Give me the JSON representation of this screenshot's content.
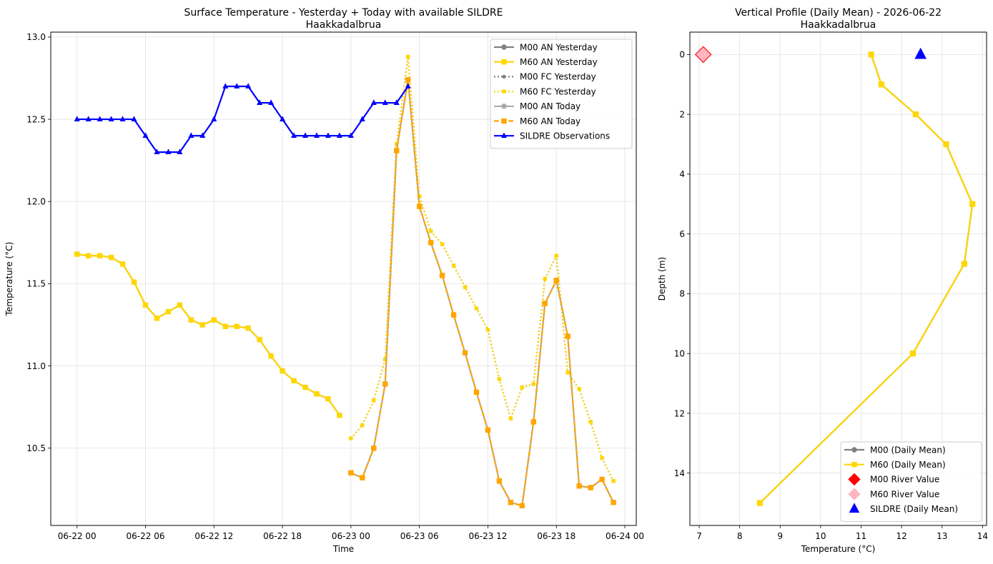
{
  "chart_data": [
    {
      "type": "line",
      "title": "Surface Temperature - Yesterday + Today with available SILDRE",
      "subtitle": "Haakkadalbrua",
      "xlabel": "Time",
      "ylabel": "Temperature (°C)",
      "x_unit": "hours since 06-22 00",
      "xlim": [
        -2.3,
        49
      ],
      "ylim": [
        10.03,
        13.03
      ],
      "x_ticks": [
        0,
        6,
        12,
        18,
        24,
        30,
        36,
        42,
        48
      ],
      "x_tick_labels": [
        "06-22 00",
        "06-22 06",
        "06-22 12",
        "06-22 18",
        "06-23 00",
        "06-23 06",
        "06-23 12",
        "06-23 18",
        "06-24 00"
      ],
      "y_ticks": [
        10.5,
        11.0,
        11.5,
        12.0,
        12.5,
        13.0
      ],
      "y_tick_labels": [
        "10.5",
        "11.0",
        "11.5",
        "12.0",
        "12.5",
        "13.0"
      ],
      "grid": true,
      "legend_position": "top-right",
      "series": [
        {
          "name": "M00 AN Yesterday",
          "color": "#808080",
          "dash": "solid",
          "marker": "circle",
          "x": [
            0,
            1,
            2,
            3,
            4,
            5,
            6,
            7,
            8,
            9,
            10,
            11,
            12,
            13,
            14,
            15,
            16,
            17,
            18,
            19,
            20,
            21,
            22,
            23
          ],
          "y": [
            11.68,
            11.67,
            11.67,
            11.66,
            11.62,
            11.51,
            11.37,
            11.29,
            11.33,
            11.37,
            11.28,
            11.25,
            11.28,
            11.24,
            11.24,
            11.23,
            11.16,
            11.06,
            10.97,
            10.91,
            10.87,
            10.83,
            10.8,
            10.7
          ]
        },
        {
          "name": "M60 AN Yesterday",
          "color": "#FFD700",
          "dash": "solid",
          "marker": "square",
          "x": [
            0,
            1,
            2,
            3,
            4,
            5,
            6,
            7,
            8,
            9,
            10,
            11,
            12,
            13,
            14,
            15,
            16,
            17,
            18,
            19,
            20,
            21,
            22,
            23
          ],
          "y": [
            11.68,
            11.67,
            11.67,
            11.66,
            11.62,
            11.51,
            11.37,
            11.29,
            11.33,
            11.37,
            11.28,
            11.25,
            11.28,
            11.24,
            11.24,
            11.23,
            11.16,
            11.06,
            10.97,
            10.91,
            10.87,
            10.83,
            10.8,
            10.7
          ]
        },
        {
          "name": "M00 FC Yesterday",
          "color": "#808080",
          "dash": "dotted",
          "marker": "circle",
          "x": [
            24,
            25,
            26,
            27,
            28,
            29,
            30,
            31,
            32,
            33,
            34,
            35,
            36,
            37,
            38,
            39,
            40,
            41,
            42,
            43,
            44,
            45,
            46,
            47
          ],
          "y": [
            10.56,
            10.64,
            10.79,
            11.04,
            12.35,
            12.88,
            12.03,
            11.82,
            11.74,
            11.61,
            11.48,
            11.35,
            11.22,
            10.92,
            10.68,
            10.87,
            10.89,
            11.53,
            11.67,
            10.96,
            10.86,
            10.66,
            10.44,
            10.3
          ]
        },
        {
          "name": "M60 FC Yesterday",
          "color": "#FFD700",
          "dash": "dotted",
          "marker": "square",
          "x": [
            24,
            25,
            26,
            27,
            28,
            29,
            30,
            31,
            32,
            33,
            34,
            35,
            36,
            37,
            38,
            39,
            40,
            41,
            42,
            43,
            44,
            45,
            46,
            47
          ],
          "y": [
            10.56,
            10.64,
            10.79,
            11.04,
            12.35,
            12.88,
            12.03,
            11.82,
            11.74,
            11.61,
            11.48,
            11.35,
            11.22,
            10.92,
            10.68,
            10.87,
            10.89,
            11.53,
            11.67,
            10.96,
            10.86,
            10.66,
            10.44,
            10.3
          ]
        },
        {
          "name": "M00 AN Today",
          "color": "#A9A9A9",
          "dash": "solid",
          "marker": "circle",
          "x": [
            24,
            25,
            26,
            27,
            28,
            29,
            30,
            31,
            32,
            33,
            34,
            35,
            36,
            37,
            38,
            39,
            40,
            41,
            42,
            43,
            44,
            45,
            46,
            47
          ],
          "y": [
            10.35,
            10.32,
            10.5,
            10.89,
            12.31,
            12.74,
            11.97,
            11.75,
            11.55,
            11.31,
            11.08,
            10.84,
            10.61,
            10.3,
            10.17,
            10.15,
            10.66,
            11.38,
            11.52,
            11.18,
            10.27,
            10.26,
            10.31,
            10.17
          ]
        },
        {
          "name": "M60 AN Today",
          "color": "#FFA500",
          "dash": "dashed",
          "marker": "square",
          "x": [
            24,
            25,
            26,
            27,
            28,
            29,
            30,
            31,
            32,
            33,
            34,
            35,
            36,
            37,
            38,
            39,
            40,
            41,
            42,
            43,
            44,
            45,
            46,
            47
          ],
          "y": [
            10.35,
            10.32,
            10.5,
            10.89,
            12.31,
            12.74,
            11.97,
            11.75,
            11.55,
            11.31,
            11.08,
            10.84,
            10.61,
            10.3,
            10.17,
            10.15,
            10.66,
            11.38,
            11.52,
            11.18,
            10.27,
            10.26,
            10.31,
            10.17
          ]
        },
        {
          "name": "SILDRE Observations",
          "color": "#0000FF",
          "dash": "solid",
          "marker": "triangle",
          "x": [
            0,
            1,
            2,
            3,
            4,
            5,
            6,
            7,
            8,
            9,
            10,
            11,
            12,
            13,
            14,
            15,
            16,
            17,
            18,
            19,
            20,
            21,
            22,
            23,
            24,
            25,
            26,
            27,
            28,
            29
          ],
          "y": [
            12.5,
            12.5,
            12.5,
            12.5,
            12.5,
            12.5,
            12.4,
            12.3,
            12.3,
            12.3,
            12.4,
            12.4,
            12.5,
            12.7,
            12.7,
            12.7,
            12.6,
            12.6,
            12.5,
            12.4,
            12.4,
            12.4,
            12.4,
            12.4,
            12.4,
            12.5,
            12.6,
            12.6,
            12.6,
            12.7
          ]
        }
      ]
    },
    {
      "type": "line",
      "title": "Vertical Profile (Daily Mean) - 2026-06-22",
      "subtitle": "Haakkadalbrua",
      "xlabel": "Temperature (°C)",
      "ylabel": "Depth (m)",
      "xlim": [
        6.77,
        14.1
      ],
      "ylim": [
        15.75,
        -0.75
      ],
      "y_inverted": true,
      "x_ticks": [
        7,
        8,
        9,
        10,
        11,
        12,
        13,
        14
      ],
      "x_tick_labels": [
        "7",
        "8",
        "9",
        "10",
        "11",
        "12",
        "13",
        "14"
      ],
      "y_ticks": [
        0,
        2,
        4,
        6,
        8,
        10,
        12,
        14
      ],
      "y_tick_labels": [
        "0",
        "2",
        "4",
        "6",
        "8",
        "10",
        "12",
        "14"
      ],
      "grid": true,
      "legend_position": "bottom-right",
      "series": [
        {
          "name": "M00 (Daily Mean)",
          "color": "#808080",
          "dash": "solid",
          "marker": "circle",
          "x": [
            11.25,
            11.5,
            12.35,
            13.1,
            13.75,
            13.55,
            12.28,
            8.5
          ],
          "y": [
            0,
            1,
            2,
            3,
            5,
            7,
            10,
            15
          ]
        },
        {
          "name": "M60 (Daily Mean)",
          "color": "#FFD700",
          "dash": "solid",
          "marker": "square",
          "x": [
            11.25,
            11.5,
            12.35,
            13.1,
            13.75,
            13.55,
            12.28,
            8.5
          ],
          "y": [
            0,
            1,
            2,
            3,
            5,
            7,
            10,
            15
          ]
        },
        {
          "name": "M00 River Value",
          "color": "#FF0000",
          "dash": "none",
          "marker": "diamond",
          "x": [
            7.1
          ],
          "y": [
            0
          ]
        },
        {
          "name": "M60 River Value",
          "color": "#FFB6C1",
          "dash": "none",
          "marker": "diamond",
          "x": [
            7.1
          ],
          "y": [
            0
          ]
        },
        {
          "name": "SILDRE (Daily Mean)",
          "color": "#0000FF",
          "dash": "none",
          "marker": "triangle",
          "x": [
            12.47
          ],
          "y": [
            0
          ]
        }
      ]
    }
  ]
}
